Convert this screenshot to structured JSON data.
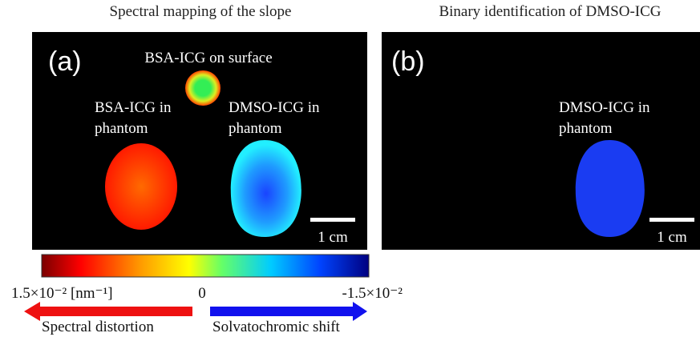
{
  "panels": [
    {
      "title": "Spectral mapping of the slope",
      "label": "(a)",
      "annotations": [
        {
          "lines": [
            "BSA-ICG on surface"
          ]
        },
        {
          "lines": [
            "BSA-ICG in",
            "phantom"
          ]
        },
        {
          "lines": [
            "DMSO-ICG in",
            "phantom"
          ]
        }
      ],
      "scale_bar": "1 cm"
    },
    {
      "title": "Binary identification of DMSO-ICG",
      "label": "(b)",
      "annotations": [
        {
          "lines": [
            "DMSO-ICG in",
            "phantom"
          ]
        }
      ],
      "scale_bar": "1 cm"
    }
  ],
  "colorbar": {
    "tick_labels": [
      "1.5×10⁻² [nm⁻¹]",
      "0",
      "-1.5×10⁻²"
    ],
    "arrows": [
      "Spectral distortion",
      "Solvatochromic shift"
    ]
  }
}
